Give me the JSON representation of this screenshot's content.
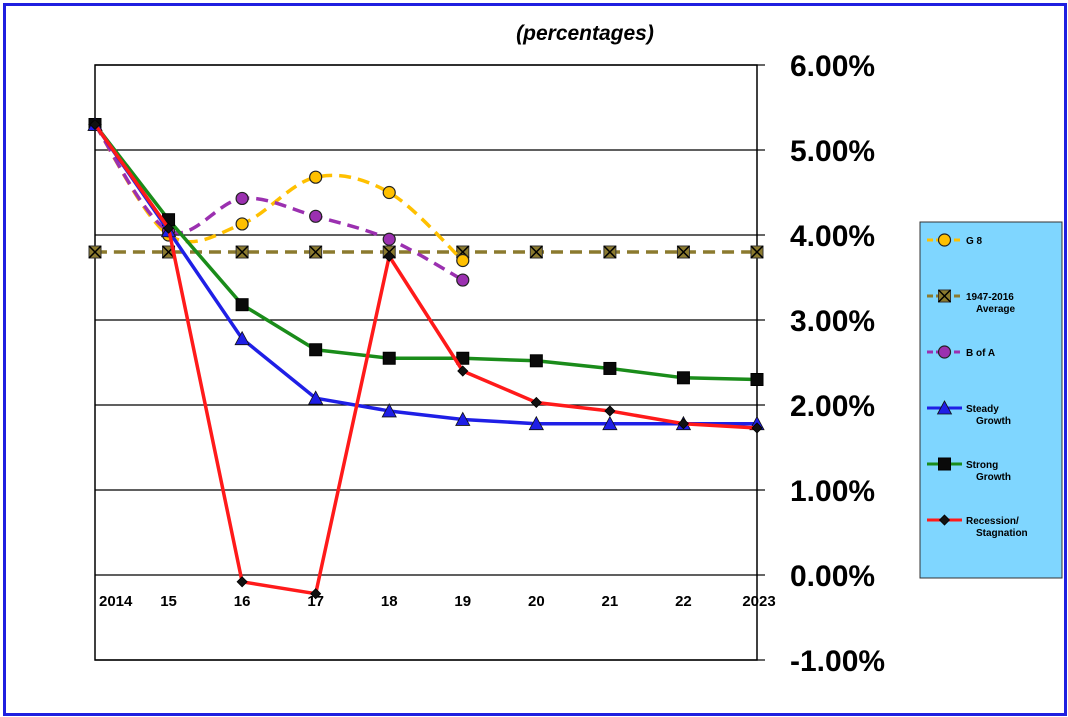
{
  "chart_data": {
    "type": "line",
    "subtitle": "(percentages)",
    "x": [
      "2014",
      "15",
      "16",
      "17",
      "18",
      "19",
      "20",
      "21",
      "22",
      "2023"
    ],
    "ylim": [
      -0.01,
      0.06
    ],
    "yticks": [
      "6.00%",
      "5.00%",
      "4.00%",
      "3.00%",
      "2.00%",
      "1.00%",
      "0.00%",
      "-1.00%"
    ],
    "grid": true,
    "legend_position": "right",
    "series": [
      {
        "name": "G 8",
        "color": "#ffc000",
        "dash": true,
        "marker": "circle",
        "values": [
          0.053,
          0.04,
          0.0413,
          0.0468,
          0.045,
          0.037,
          null,
          null,
          null,
          null
        ]
      },
      {
        "name": "1947-2016 Average",
        "color": "#8b7a2e",
        "dash": true,
        "marker": "x",
        "values": [
          0.038,
          0.038,
          0.038,
          0.038,
          0.038,
          0.038,
          0.038,
          0.038,
          0.038,
          0.038
        ]
      },
      {
        "name": "B of A",
        "color": "#9b30b0",
        "dash": true,
        "marker": "circle",
        "values": [
          0.053,
          0.0405,
          0.0443,
          0.0422,
          0.0395,
          0.0347,
          null,
          null,
          null,
          null
        ]
      },
      {
        "name": "Steady Growth",
        "color": "#1f1fe6",
        "dash": false,
        "marker": "triangle",
        "values": [
          0.053,
          0.0405,
          0.0278,
          0.0208,
          0.0193,
          0.0183,
          0.0178,
          0.0178,
          0.0178,
          0.0178
        ]
      },
      {
        "name": "Strong Growth",
        "color": "#1a8c1a",
        "dash": false,
        "marker": "square",
        "values": [
          0.053,
          0.0418,
          0.0318,
          0.0265,
          0.0255,
          0.0255,
          0.0252,
          0.0243,
          0.0232,
          0.023
        ]
      },
      {
        "name": "Recession/ Stagnation",
        "color": "#ff1a1a",
        "dash": false,
        "marker": "diamond",
        "values": [
          0.053,
          0.0408,
          -0.0008,
          -0.0022,
          0.0375,
          0.024,
          0.0203,
          0.0193,
          0.0178,
          0.0173
        ]
      }
    ]
  },
  "legend": {
    "items": [
      {
        "lines": [
          "G 8"
        ]
      },
      {
        "lines": [
          "1947-2016",
          "Average"
        ]
      },
      {
        "lines": [
          "B of A"
        ]
      },
      {
        "lines": [
          "Steady",
          "Growth"
        ]
      },
      {
        "lines": [
          "Strong",
          "Growth"
        ]
      },
      {
        "lines": [
          "Recession/",
          "Stagnation"
        ]
      }
    ]
  }
}
